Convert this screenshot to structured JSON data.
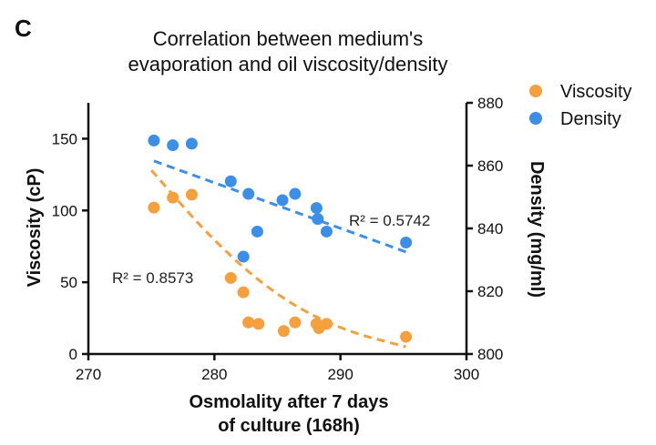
{
  "panel_label": "C",
  "chart_data": {
    "type": "scatter",
    "title_lines": [
      "Correlation between medium's",
      "evaporation and oil viscosity/density"
    ],
    "xlabel_lines": [
      "Osmolality after 7 days",
      "of culture (168h)"
    ],
    "ylabel_left": "Viscosity (cP)",
    "ylabel_right": "Density (mg/ml)",
    "xlim": [
      270,
      300
    ],
    "ylim_left": [
      0,
      175
    ],
    "ylim_right": [
      800,
      880
    ],
    "x_ticks": [
      270,
      280,
      290,
      300
    ],
    "y_ticks_left": [
      0,
      50,
      100,
      150
    ],
    "y_ticks_right": [
      800,
      820,
      840,
      860,
      880
    ],
    "grid": false,
    "legend_position": "top-right",
    "series": [
      {
        "name": "Viscosity",
        "axis": "left",
        "color": "#f5a03c",
        "points": [
          {
            "x": 275.2,
            "y": 102
          },
          {
            "x": 276.7,
            "y": 109
          },
          {
            "x": 278.2,
            "y": 111
          },
          {
            "x": 281.3,
            "y": 53
          },
          {
            "x": 282.3,
            "y": 43
          },
          {
            "x": 282.7,
            "y": 22
          },
          {
            "x": 283.5,
            "y": 21
          },
          {
            "x": 285.5,
            "y": 16
          },
          {
            "x": 286.4,
            "y": 22
          },
          {
            "x": 288.1,
            "y": 21
          },
          {
            "x": 288.3,
            "y": 18
          },
          {
            "x": 288.9,
            "y": 21
          },
          {
            "x": 295.2,
            "y": 12
          }
        ],
        "trendline": {
          "kind": "quadratic",
          "dash": true,
          "x_range": [
            275,
            295.2
          ],
          "points": [
            [
              275,
              128
            ],
            [
              280,
              78
            ],
            [
              285,
              40
            ],
            [
              290,
              17
            ],
            [
              295.2,
              5
            ]
          ]
        },
        "r2_label": "R² = 0.8573"
      },
      {
        "name": "Density",
        "axis": "right",
        "color": "#3b8fe8",
        "points": [
          {
            "x": 275.2,
            "y": 868
          },
          {
            "x": 276.7,
            "y": 866.5
          },
          {
            "x": 278.2,
            "y": 867
          },
          {
            "x": 281.3,
            "y": 855
          },
          {
            "x": 282.3,
            "y": 831
          },
          {
            "x": 282.7,
            "y": 851
          },
          {
            "x": 283.4,
            "y": 839
          },
          {
            "x": 285.4,
            "y": 849
          },
          {
            "x": 286.4,
            "y": 851
          },
          {
            "x": 288.1,
            "y": 846.5
          },
          {
            "x": 288.2,
            "y": 843
          },
          {
            "x": 288.9,
            "y": 839
          },
          {
            "x": 295.2,
            "y": 835.5
          }
        ],
        "trendline": {
          "kind": "linear",
          "dash": true,
          "x_range": [
            275.2,
            295.2
          ],
          "points": [
            [
              275.2,
              861.5
            ],
            [
              295.2,
              832.5
            ]
          ]
        },
        "r2_label": "R² = 0.5742"
      }
    ]
  }
}
